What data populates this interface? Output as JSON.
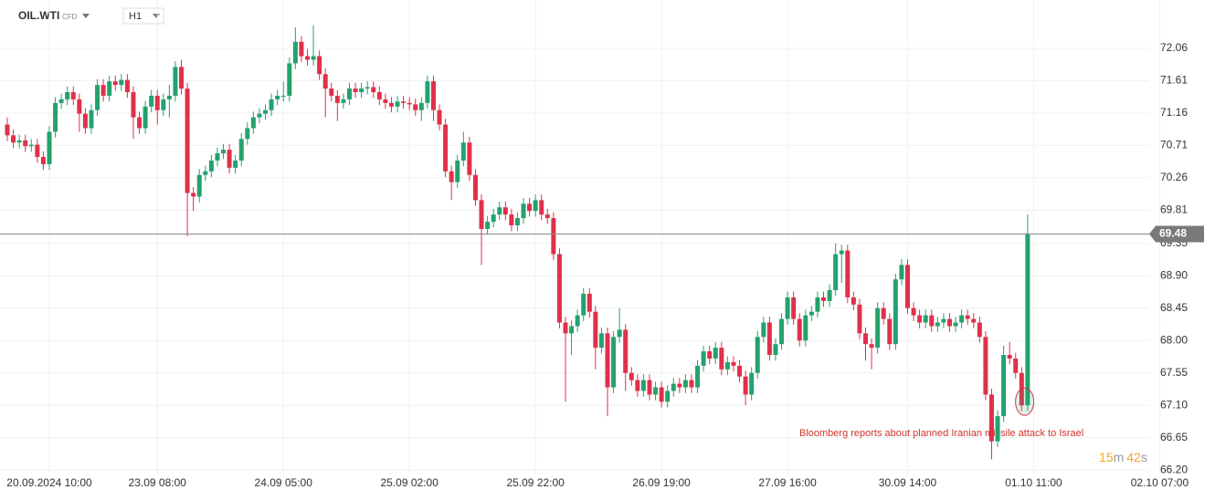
{
  "symbol": "OIL.WTI",
  "instrument_type": "CFD",
  "timeframe": "H1",
  "countdown": {
    "minutes": "15",
    "minutes_unit": "m",
    "seconds": "42",
    "seconds_unit": "s"
  },
  "chart_data": {
    "type": "candlestick",
    "annotation": "Bloomberg reports about planned Iranian missile attack to Israel",
    "current_price": 69.48,
    "up_color": "#23a26d",
    "down_color": "#e0304a",
    "grid": true,
    "ylim": [
      66.14,
      72.73
    ],
    "yticks": [
      72.06,
      71.61,
      71.16,
      70.71,
      70.26,
      69.81,
      69.35,
      {
        "value": 68.9,
        "label": "68.90"
      },
      68.45,
      {
        "value": 68,
        "label": "68.00"
      },
      67.55,
      {
        "value": 67.1,
        "label": "67.10"
      },
      66.65,
      {
        "value": 66.2,
        "label": "66.20"
      }
    ],
    "xticks": [
      {
        "value": 7,
        "label": "20.09.2024  10:00"
      },
      {
        "value": 25,
        "label": "23.09  08:00"
      },
      {
        "value": 46,
        "label": "24.09  05:00"
      },
      {
        "value": 67,
        "label": "25.09  02:00"
      },
      {
        "value": 88,
        "label": "25.09  22:00"
      },
      {
        "value": 109,
        "label": "26.09  19:00"
      },
      {
        "value": 130,
        "label": "27.09  16:00"
      },
      {
        "value": 150,
        "label": "30.09  14:00"
      },
      {
        "value": 171,
        "label": "01.10  11:00"
      },
      {
        "value": 192,
        "label": "02.10  07:00"
      }
    ],
    "candles": [
      [
        71.0,
        71.1,
        70.77,
        70.85
      ],
      [
        70.85,
        70.93,
        70.67,
        70.75
      ],
      [
        70.75,
        70.86,
        70.67,
        70.78
      ],
      [
        70.78,
        70.86,
        70.62,
        70.7
      ],
      [
        70.7,
        70.8,
        70.62,
        70.72
      ],
      [
        70.72,
        70.8,
        70.47,
        70.55
      ],
      [
        70.55,
        70.63,
        70.37,
        70.45
      ],
      [
        70.45,
        70.98,
        70.37,
        70.9
      ],
      [
        70.9,
        71.38,
        70.82,
        71.3
      ],
      [
        71.3,
        71.43,
        71.22,
        71.35
      ],
      [
        71.35,
        71.53,
        71.27,
        71.45
      ],
      [
        71.45,
        71.53,
        71.27,
        71.35
      ],
      [
        71.35,
        71.43,
        70.9,
        71.15
      ],
      [
        71.15,
        71.23,
        70.87,
        70.95
      ],
      [
        70.95,
        71.28,
        70.87,
        71.2
      ],
      [
        71.2,
        71.63,
        71.12,
        71.55
      ],
      [
        71.55,
        71.63,
        71.32,
        71.4
      ],
      [
        71.4,
        71.68,
        71.32,
        71.6
      ],
      [
        71.6,
        71.68,
        71.47,
        71.55
      ],
      [
        71.55,
        71.7,
        71.47,
        71.62
      ],
      [
        71.62,
        71.7,
        71.37,
        71.45
      ],
      [
        71.45,
        71.53,
        70.8,
        71.1
      ],
      [
        71.1,
        71.18,
        70.87,
        70.95
      ],
      [
        70.95,
        71.33,
        70.87,
        71.25
      ],
      [
        71.25,
        71.48,
        71.17,
        71.4
      ],
      [
        71.4,
        71.48,
        71.0,
        71.2
      ],
      [
        71.2,
        71.43,
        71.12,
        71.35
      ],
      [
        71.35,
        71.55,
        71.1,
        71.4
      ],
      [
        71.4,
        71.88,
        71.32,
        71.8
      ],
      [
        71.8,
        71.9,
        71.42,
        71.5
      ],
      [
        71.5,
        71.58,
        69.45,
        70.05
      ],
      [
        70.05,
        70.13,
        69.8,
        70.0
      ],
      [
        70.0,
        70.38,
        69.92,
        70.3
      ],
      [
        70.3,
        70.43,
        70.22,
        70.35
      ],
      [
        70.35,
        70.58,
        70.27,
        70.5
      ],
      [
        70.5,
        70.68,
        70.42,
        70.6
      ],
      [
        70.6,
        70.73,
        70.52,
        70.65
      ],
      [
        70.65,
        70.73,
        70.32,
        70.4
      ],
      [
        70.4,
        70.58,
        70.32,
        70.5
      ],
      [
        70.5,
        70.88,
        70.42,
        70.8
      ],
      [
        70.8,
        71.03,
        70.72,
        70.95
      ],
      [
        70.95,
        71.18,
        70.87,
        71.1
      ],
      [
        71.1,
        71.23,
        71.02,
        71.15
      ],
      [
        71.15,
        71.28,
        71.07,
        71.2
      ],
      [
        71.2,
        71.43,
        71.12,
        71.35
      ],
      [
        71.35,
        71.48,
        71.27,
        71.4
      ],
      [
        71.4,
        71.6,
        71.32,
        71.4
      ],
      [
        71.4,
        71.93,
        71.32,
        71.85
      ],
      [
        71.85,
        72.35,
        71.77,
        72.15
      ],
      [
        72.15,
        72.23,
        71.87,
        71.95
      ],
      [
        71.95,
        72.05,
        71.82,
        71.9
      ],
      [
        71.9,
        72.38,
        71.82,
        71.95
      ],
      [
        71.95,
        72.03,
        71.62,
        71.7
      ],
      [
        71.7,
        71.78,
        71.1,
        71.5
      ],
      [
        71.5,
        71.58,
        71.32,
        71.4
      ],
      [
        71.4,
        71.48,
        71.05,
        71.3
      ],
      [
        71.3,
        71.43,
        71.22,
        71.35
      ],
      [
        71.35,
        71.58,
        71.27,
        71.5
      ],
      [
        71.5,
        71.58,
        71.37,
        71.45
      ],
      [
        71.45,
        71.58,
        71.37,
        71.5
      ],
      [
        71.5,
        71.6,
        71.42,
        71.52
      ],
      [
        71.52,
        71.6,
        71.37,
        71.45
      ],
      [
        71.45,
        71.53,
        71.27,
        71.35
      ],
      [
        71.35,
        71.43,
        71.22,
        71.3
      ],
      [
        71.3,
        71.38,
        71.17,
        71.25
      ],
      [
        71.25,
        71.4,
        71.17,
        71.32
      ],
      [
        71.32,
        71.4,
        71.22,
        71.3
      ],
      [
        71.3,
        71.38,
        71.2,
        71.28
      ],
      [
        71.28,
        71.36,
        71.12,
        71.2
      ],
      [
        71.2,
        71.38,
        71.05,
        71.3
      ],
      [
        71.3,
        71.68,
        71.22,
        71.6
      ],
      [
        71.6,
        71.68,
        71.05,
        71.2
      ],
      [
        71.2,
        71.28,
        70.92,
        71.0
      ],
      [
        71.0,
        71.08,
        70.27,
        70.35
      ],
      [
        70.35,
        70.43,
        69.95,
        70.2
      ],
      [
        70.2,
        70.58,
        70.12,
        70.5
      ],
      [
        70.5,
        70.9,
        70.42,
        70.75
      ],
      [
        70.75,
        70.83,
        70.22,
        70.3
      ],
      [
        70.3,
        70.38,
        69.87,
        69.95
      ],
      [
        69.95,
        70.03,
        69.05,
        69.55
      ],
      [
        69.55,
        69.73,
        69.47,
        69.65
      ],
      [
        69.65,
        69.83,
        69.57,
        69.75
      ],
      [
        69.75,
        69.93,
        69.67,
        69.85
      ],
      [
        69.85,
        69.93,
        69.67,
        69.75
      ],
      [
        69.75,
        69.83,
        69.52,
        69.6
      ],
      [
        69.6,
        69.78,
        69.52,
        69.7
      ],
      [
        69.7,
        69.98,
        69.62,
        69.9
      ],
      [
        69.9,
        69.98,
        69.72,
        69.8
      ],
      [
        69.8,
        70.03,
        69.72,
        69.95
      ],
      [
        69.95,
        70.03,
        69.67,
        69.75
      ],
      [
        69.75,
        69.83,
        69.62,
        69.7
      ],
      [
        69.7,
        69.78,
        69.12,
        69.2
      ],
      [
        69.2,
        69.28,
        68.17,
        68.25
      ],
      [
        68.25,
        68.33,
        67.15,
        68.1
      ],
      [
        68.1,
        68.28,
        67.8,
        68.2
      ],
      [
        68.2,
        68.43,
        68.12,
        68.35
      ],
      [
        68.35,
        68.73,
        68.27,
        68.65
      ],
      [
        68.65,
        68.73,
        68.32,
        68.4
      ],
      [
        68.4,
        68.48,
        67.6,
        67.9
      ],
      [
        67.9,
        68.18,
        67.82,
        68.1
      ],
      [
        68.1,
        68.18,
        66.95,
        67.35
      ],
      [
        67.35,
        68.13,
        67.27,
        68.05
      ],
      [
        68.05,
        68.45,
        67.97,
        68.15
      ],
      [
        68.15,
        68.23,
        67.3,
        67.55
      ],
      [
        67.55,
        67.63,
        67.37,
        67.45
      ],
      [
        67.45,
        67.53,
        67.22,
        67.3
      ],
      [
        67.3,
        67.53,
        67.22,
        67.45
      ],
      [
        67.45,
        67.53,
        67.17,
        67.25
      ],
      [
        67.25,
        67.43,
        67.17,
        67.35
      ],
      [
        67.35,
        67.43,
        67.07,
        67.15
      ],
      [
        67.15,
        67.38,
        67.07,
        67.3
      ],
      [
        67.3,
        67.48,
        67.22,
        67.4
      ],
      [
        67.4,
        67.48,
        67.27,
        67.35
      ],
      [
        67.35,
        67.53,
        67.27,
        67.45
      ],
      [
        67.45,
        67.53,
        67.27,
        67.35
      ],
      [
        67.35,
        67.73,
        67.27,
        67.65
      ],
      [
        67.65,
        67.93,
        67.57,
        67.85
      ],
      [
        67.85,
        67.93,
        67.67,
        67.75
      ],
      [
        67.75,
        67.98,
        67.67,
        67.9
      ],
      [
        67.9,
        67.98,
        67.52,
        67.6
      ],
      [
        67.6,
        67.78,
        67.52,
        67.7
      ],
      [
        67.7,
        67.78,
        67.57,
        67.65
      ],
      [
        67.65,
        67.73,
        67.42,
        67.5
      ],
      [
        67.5,
        67.58,
        67.1,
        67.25
      ],
      [
        67.25,
        67.63,
        67.17,
        67.55
      ],
      [
        67.55,
        68.13,
        67.47,
        68.05
      ],
      [
        68.05,
        68.33,
        67.97,
        68.25
      ],
      [
        68.25,
        68.33,
        67.72,
        67.8
      ],
      [
        67.8,
        68.03,
        67.72,
        67.95
      ],
      [
        67.95,
        68.38,
        67.87,
        68.3
      ],
      [
        68.3,
        68.68,
        68.22,
        68.6
      ],
      [
        68.6,
        68.68,
        68.22,
        68.3
      ],
      [
        68.3,
        68.38,
        67.92,
        68.0
      ],
      [
        68.0,
        68.43,
        67.92,
        68.35
      ],
      [
        68.35,
        68.48,
        68.27,
        68.4
      ],
      [
        68.4,
        68.68,
        68.32,
        68.6
      ],
      [
        68.6,
        68.68,
        68.47,
        68.55
      ],
      [
        68.55,
        68.78,
        68.47,
        68.7
      ],
      [
        68.7,
        69.35,
        68.62,
        69.2
      ],
      [
        69.2,
        69.33,
        68.8,
        69.25
      ],
      [
        69.25,
        69.33,
        68.52,
        68.6
      ],
      [
        68.6,
        68.68,
        68.42,
        68.5
      ],
      [
        68.5,
        68.58,
        68.02,
        68.1
      ],
      [
        68.1,
        68.18,
        67.72,
        67.95
      ],
      [
        67.95,
        68.03,
        67.6,
        67.9
      ],
      [
        67.9,
        68.53,
        67.82,
        68.45
      ],
      [
        68.45,
        68.53,
        68.22,
        68.3
      ],
      [
        68.3,
        68.38,
        67.87,
        67.95
      ],
      [
        67.95,
        68.93,
        67.87,
        68.85
      ],
      [
        68.85,
        69.13,
        68.77,
        69.05
      ],
      [
        69.05,
        69.13,
        68.37,
        68.45
      ],
      [
        68.45,
        68.53,
        68.27,
        68.35
      ],
      [
        68.35,
        68.43,
        68.17,
        68.25
      ],
      [
        68.25,
        68.43,
        68.17,
        68.35
      ],
      [
        68.35,
        68.43,
        68.12,
        68.2
      ],
      [
        68.2,
        68.33,
        68.12,
        68.25
      ],
      [
        68.25,
        68.38,
        68.17,
        68.3
      ],
      [
        68.3,
        68.38,
        68.12,
        68.2
      ],
      [
        68.2,
        68.33,
        68.12,
        68.25
      ],
      [
        68.25,
        68.43,
        68.17,
        68.35
      ],
      [
        68.35,
        68.43,
        68.22,
        68.3
      ],
      [
        68.3,
        68.38,
        68.17,
        68.25
      ],
      [
        68.25,
        68.33,
        67.97,
        68.05
      ],
      [
        68.05,
        68.13,
        67.17,
        67.25
      ],
      [
        67.25,
        67.33,
        66.35,
        66.6
      ],
      [
        66.6,
        67.03,
        66.52,
        66.95
      ],
      [
        66.95,
        67.93,
        66.87,
        67.8
      ],
      [
        67.8,
        67.98,
        67.67,
        67.75
      ],
      [
        67.75,
        67.83,
        67.47,
        67.55
      ],
      [
        67.55,
        67.63,
        67.02,
        67.1
      ],
      [
        67.1,
        69.75,
        67.02,
        69.48
      ]
    ]
  }
}
